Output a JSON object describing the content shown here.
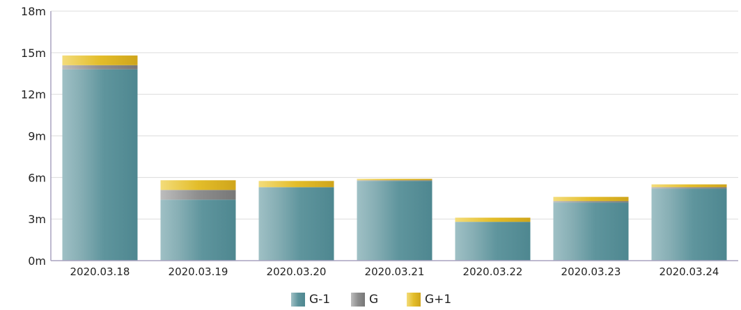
{
  "chart_data": {
    "type": "bar",
    "stacked": true,
    "categories": [
      "2020.03.18",
      "2020.03.19",
      "2020.03.20",
      "2020.03.21",
      "2020.03.22",
      "2020.03.23",
      "2020.03.24"
    ],
    "series": [
      {
        "name": "G-1",
        "color": "#5b949c",
        "values": [
          13.8,
          4.4,
          5.3,
          5.75,
          2.8,
          4.2,
          5.2
        ]
      },
      {
        "name": "G",
        "color": "#8c8c8c",
        "values": [
          0.3,
          0.7,
          0.0,
          0.05,
          0.0,
          0.1,
          0.1
        ]
      },
      {
        "name": "G+1",
        "color": "#e3bd2a",
        "values": [
          0.7,
          0.7,
          0.45,
          0.1,
          0.3,
          0.3,
          0.2
        ]
      }
    ],
    "yticks": [
      "0m",
      "3m",
      "6m",
      "9m",
      "12m",
      "15m",
      "18m"
    ],
    "ylim": [
      0,
      18
    ],
    "grid": true,
    "legend": "bottom-center"
  }
}
